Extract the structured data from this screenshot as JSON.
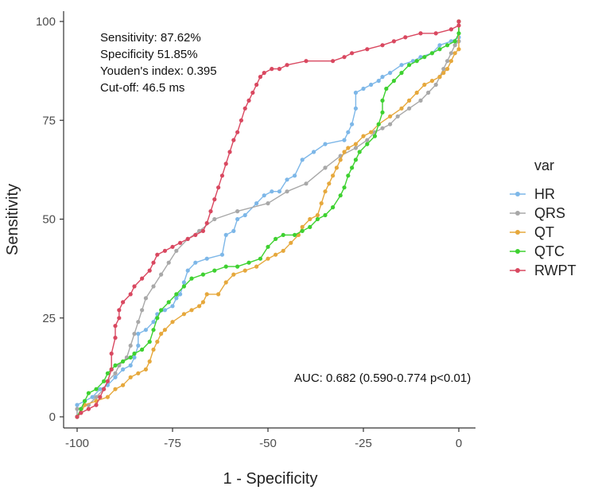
{
  "chart_data": {
    "type": "line",
    "xlabel": "1 - Specificity",
    "ylabel": "Sensitivity",
    "xlim": [
      -100,
      0
    ],
    "ylim": [
      0,
      100
    ],
    "xticks": [
      -100,
      -75,
      -50,
      -25,
      0
    ],
    "yticks": [
      0,
      25,
      50,
      75,
      100
    ],
    "xtick_labels": [
      "-100",
      "-75",
      "-50",
      "-25",
      "0"
    ],
    "ytick_labels": [
      "0",
      "25",
      "50",
      "75",
      "100"
    ],
    "legend_title": "var",
    "annotations": {
      "stats": [
        "Sensitivity: 87.62%",
        "Specificity  51.85%",
        "Youden's index: 0.395",
        "Cut-off: 46.5 ms"
      ],
      "auc": "AUC: 0.682 (0.590-0.774 p<0.01)"
    },
    "series": [
      {
        "name": "HR",
        "color": "#7db7e8",
        "points": [
          [
            -100,
            0
          ],
          [
            -100,
            3
          ],
          [
            -98,
            4
          ],
          [
            -96,
            5
          ],
          [
            -94,
            7
          ],
          [
            -92,
            8
          ],
          [
            -90,
            10
          ],
          [
            -88,
            12
          ],
          [
            -86,
            13
          ],
          [
            -85,
            15
          ],
          [
            -84,
            18
          ],
          [
            -84,
            21
          ],
          [
            -82,
            22
          ],
          [
            -80,
            24
          ],
          [
            -79,
            26
          ],
          [
            -77,
            27
          ],
          [
            -75,
            28
          ],
          [
            -74,
            30
          ],
          [
            -73,
            31
          ],
          [
            -72,
            34
          ],
          [
            -71,
            37
          ],
          [
            -69,
            39
          ],
          [
            -66,
            40
          ],
          [
            -62,
            41
          ],
          [
            -61,
            46
          ],
          [
            -59,
            47
          ],
          [
            -58,
            50
          ],
          [
            -56,
            51
          ],
          [
            -53,
            54
          ],
          [
            -51,
            56
          ],
          [
            -49,
            57
          ],
          [
            -47,
            57
          ],
          [
            -45,
            60
          ],
          [
            -43,
            61
          ],
          [
            -41,
            65
          ],
          [
            -38,
            67
          ],
          [
            -35,
            69
          ],
          [
            -30,
            70
          ],
          [
            -29,
            72
          ],
          [
            -28,
            74
          ],
          [
            -27,
            78
          ],
          [
            -27,
            82
          ],
          [
            -25,
            83
          ],
          [
            -23,
            84
          ],
          [
            -21,
            85
          ],
          [
            -20,
            86
          ],
          [
            -18,
            87
          ],
          [
            -15,
            89
          ],
          [
            -12,
            90
          ],
          [
            -10,
            91
          ],
          [
            -7,
            92
          ],
          [
            -5,
            94
          ],
          [
            -2,
            95
          ],
          [
            0,
            96
          ],
          [
            0,
            100
          ]
        ]
      },
      {
        "name": "QRS",
        "color": "#a8a8a8",
        "points": [
          [
            -100,
            0
          ],
          [
            -100,
            2
          ],
          [
            -97,
            3
          ],
          [
            -95,
            5
          ],
          [
            -93,
            7
          ],
          [
            -92,
            9
          ],
          [
            -90,
            11
          ],
          [
            -89,
            13
          ],
          [
            -87,
            15
          ],
          [
            -86,
            18
          ],
          [
            -85,
            21
          ],
          [
            -84,
            24
          ],
          [
            -83,
            27
          ],
          [
            -82,
            30
          ],
          [
            -80,
            33
          ],
          [
            -78,
            36
          ],
          [
            -76,
            39
          ],
          [
            -74,
            42
          ],
          [
            -71,
            45
          ],
          [
            -68,
            47
          ],
          [
            -64,
            50
          ],
          [
            -58,
            52
          ],
          [
            -50,
            54
          ],
          [
            -45,
            57
          ],
          [
            -40,
            59
          ],
          [
            -35,
            63
          ],
          [
            -31,
            66
          ],
          [
            -27,
            68
          ],
          [
            -24,
            70
          ],
          [
            -22,
            72
          ],
          [
            -20,
            73
          ],
          [
            -18,
            74
          ],
          [
            -16,
            76
          ],
          [
            -13,
            78
          ],
          [
            -10,
            80
          ],
          [
            -8,
            82
          ],
          [
            -6,
            84
          ],
          [
            -5,
            86
          ],
          [
            -4,
            88
          ],
          [
            -3,
            90
          ],
          [
            -2,
            92
          ],
          [
            -1,
            94
          ],
          [
            0,
            95
          ],
          [
            0,
            100
          ]
        ]
      },
      {
        "name": "QT",
        "color": "#e6a83c",
        "points": [
          [
            -100,
            0
          ],
          [
            -99,
            1
          ],
          [
            -98,
            3
          ],
          [
            -95,
            4
          ],
          [
            -92,
            5
          ],
          [
            -90,
            7
          ],
          [
            -88,
            8
          ],
          [
            -86,
            10
          ],
          [
            -84,
            11
          ],
          [
            -82,
            12
          ],
          [
            -81,
            14
          ],
          [
            -80,
            17
          ],
          [
            -79,
            19
          ],
          [
            -78,
            21
          ],
          [
            -77,
            22
          ],
          [
            -75,
            24
          ],
          [
            -72,
            26
          ],
          [
            -70,
            27
          ],
          [
            -68,
            28
          ],
          [
            -67,
            29
          ],
          [
            -66,
            31
          ],
          [
            -63,
            31
          ],
          [
            -61,
            34
          ],
          [
            -59,
            36
          ],
          [
            -56,
            37
          ],
          [
            -53,
            38
          ],
          [
            -50,
            40
          ],
          [
            -48,
            41
          ],
          [
            -46,
            42
          ],
          [
            -44,
            44
          ],
          [
            -42,
            46
          ],
          [
            -41,
            48
          ],
          [
            -39,
            50
          ],
          [
            -37,
            51
          ],
          [
            -36,
            54
          ],
          [
            -35,
            57
          ],
          [
            -34,
            59
          ],
          [
            -33,
            61
          ],
          [
            -32,
            63
          ],
          [
            -31,
            65
          ],
          [
            -30,
            67
          ],
          [
            -29,
            68
          ],
          [
            -27,
            69
          ],
          [
            -25,
            71
          ],
          [
            -23,
            72
          ],
          [
            -21,
            74
          ],
          [
            -18,
            76
          ],
          [
            -15,
            78
          ],
          [
            -13,
            80
          ],
          [
            -11,
            82
          ],
          [
            -9,
            84
          ],
          [
            -7,
            85
          ],
          [
            -5,
            86
          ],
          [
            -4,
            87
          ],
          [
            -3,
            88
          ],
          [
            -2,
            90
          ],
          [
            -1,
            92
          ],
          [
            0,
            93
          ],
          [
            0,
            100
          ]
        ]
      },
      {
        "name": "QTC",
        "color": "#3ed130",
        "points": [
          [
            -100,
            0
          ],
          [
            -99,
            2
          ],
          [
            -98,
            4
          ],
          [
            -97,
            6
          ],
          [
            -95,
            7
          ],
          [
            -93,
            9
          ],
          [
            -92,
            11
          ],
          [
            -91,
            12
          ],
          [
            -90,
            13
          ],
          [
            -88,
            14
          ],
          [
            -86,
            15
          ],
          [
            -85,
            16
          ],
          [
            -83,
            17
          ],
          [
            -81,
            19
          ],
          [
            -80,
            22
          ],
          [
            -79,
            25
          ],
          [
            -78,
            27
          ],
          [
            -76,
            29
          ],
          [
            -74,
            31
          ],
          [
            -72,
            33
          ],
          [
            -70,
            35
          ],
          [
            -67,
            36
          ],
          [
            -64,
            37
          ],
          [
            -61,
            38
          ],
          [
            -58,
            38
          ],
          [
            -55,
            39
          ],
          [
            -52,
            40
          ],
          [
            -50,
            43
          ],
          [
            -48,
            45
          ],
          [
            -46,
            46
          ],
          [
            -43,
            46
          ],
          [
            -41,
            47
          ],
          [
            -39,
            48
          ],
          [
            -37,
            50
          ],
          [
            -35,
            51
          ],
          [
            -33,
            53
          ],
          [
            -31,
            56
          ],
          [
            -30,
            58
          ],
          [
            -29,
            61
          ],
          [
            -28,
            63
          ],
          [
            -27,
            65
          ],
          [
            -26,
            67
          ],
          [
            -24,
            69
          ],
          [
            -22,
            71
          ],
          [
            -21,
            74
          ],
          [
            -20,
            77
          ],
          [
            -20,
            80
          ],
          [
            -19,
            83
          ],
          [
            -17,
            85
          ],
          [
            -15,
            87
          ],
          [
            -13,
            89
          ],
          [
            -11,
            90
          ],
          [
            -9,
            91
          ],
          [
            -7,
            92
          ],
          [
            -5,
            93
          ],
          [
            -3,
            94
          ],
          [
            -1,
            95
          ],
          [
            0,
            97
          ],
          [
            0,
            100
          ]
        ]
      },
      {
        "name": "RWPT",
        "color": "#d94860",
        "points": [
          [
            -100,
            0
          ],
          [
            -99,
            1
          ],
          [
            -97,
            2
          ],
          [
            -95,
            3
          ],
          [
            -94,
            5
          ],
          [
            -93,
            7
          ],
          [
            -92,
            9
          ],
          [
            -91,
            12
          ],
          [
            -91,
            16
          ],
          [
            -90,
            20
          ],
          [
            -90,
            23
          ],
          [
            -89,
            25
          ],
          [
            -89,
            27
          ],
          [
            -88,
            29
          ],
          [
            -86,
            31
          ],
          [
            -85,
            33
          ],
          [
            -83,
            35
          ],
          [
            -81,
            37
          ],
          [
            -80,
            39
          ],
          [
            -79,
            41
          ],
          [
            -77,
            42
          ],
          [
            -75,
            43
          ],
          [
            -73,
            44
          ],
          [
            -71,
            45
          ],
          [
            -69,
            46
          ],
          [
            -67,
            47
          ],
          [
            -66,
            49
          ],
          [
            -65,
            52
          ],
          [
            -64,
            55
          ],
          [
            -63,
            58
          ],
          [
            -62,
            61
          ],
          [
            -61,
            64
          ],
          [
            -60,
            67
          ],
          [
            -59,
            70
          ],
          [
            -58,
            72
          ],
          [
            -57,
            75
          ],
          [
            -56,
            78
          ],
          [
            -55,
            80
          ],
          [
            -54,
            82
          ],
          [
            -53,
            84
          ],
          [
            -52,
            86
          ],
          [
            -51,
            87
          ],
          [
            -49,
            88
          ],
          [
            -47,
            88
          ],
          [
            -45,
            89
          ],
          [
            -40,
            90
          ],
          [
            -33,
            90
          ],
          [
            -30,
            91
          ],
          [
            -28,
            92
          ],
          [
            -24,
            93
          ],
          [
            -20,
            94
          ],
          [
            -17,
            95
          ],
          [
            -14,
            96
          ],
          [
            -10,
            97
          ],
          [
            -6,
            97
          ],
          [
            -2,
            98
          ],
          [
            0,
            99
          ],
          [
            0,
            100
          ]
        ]
      }
    ]
  }
}
